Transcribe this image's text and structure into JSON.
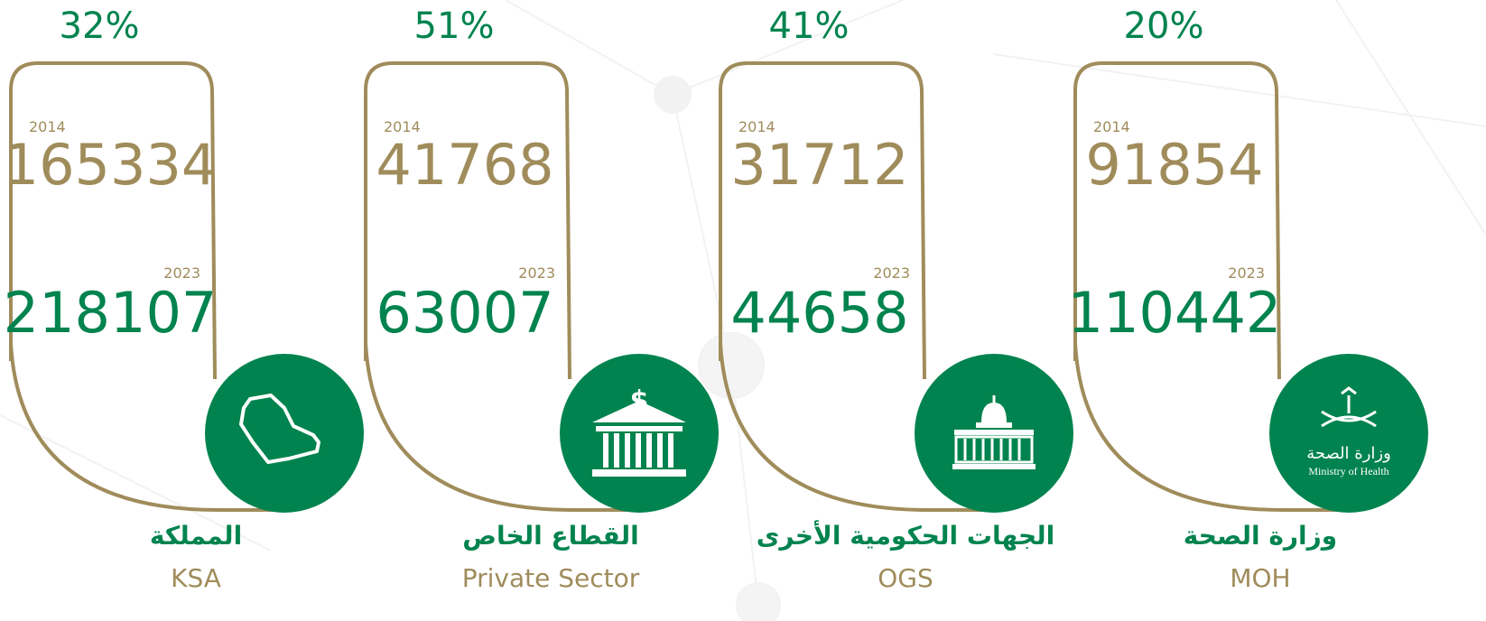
{
  "cards": [
    {
      "percent": "32%",
      "year_start": "2014",
      "value_start": 165334,
      "year_end": "2023",
      "value_end": 218107,
      "name_ar": "المملكة",
      "name_en": "KSA"
    },
    {
      "percent": "51%",
      "year_start": "2014",
      "value_start": 41768,
      "year_end": "2023",
      "value_end": 63007,
      "name_ar": "القطاع الخاص",
      "name_en": "Private Sector"
    },
    {
      "percent": "41%",
      "year_start": "2014",
      "value_start": 31712,
      "year_end": "2023",
      "value_end": 44658,
      "name_ar": "الجهات الحكومية الأخرى",
      "name_en": "OGS"
    },
    {
      "percent": "20%",
      "year_start": "2014",
      "value_start": 91854,
      "year_end": "2023",
      "value_end": 110442,
      "name_ar": "وزارة الصحة",
      "name_en": "MOH"
    }
  ],
  "moh_logo": {
    "text_ar": "وزارة الصحة",
    "text_en": "Ministry of Health"
  }
}
